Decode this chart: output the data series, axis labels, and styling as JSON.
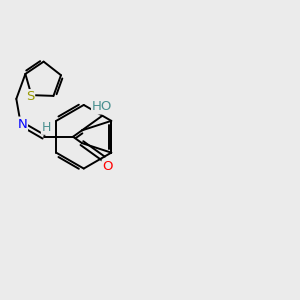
{
  "background_color": "#ebebeb",
  "bond_color": "#000000",
  "atom_colors": {
    "O": "#ff0000",
    "N": "#0000ff",
    "S": "#999900",
    "H_label": "#4a9090",
    "C": "#000000"
  },
  "figsize": [
    3.0,
    3.0
  ],
  "dpi": 100,
  "bond_lw": 1.4,
  "fontsize": 9.5
}
